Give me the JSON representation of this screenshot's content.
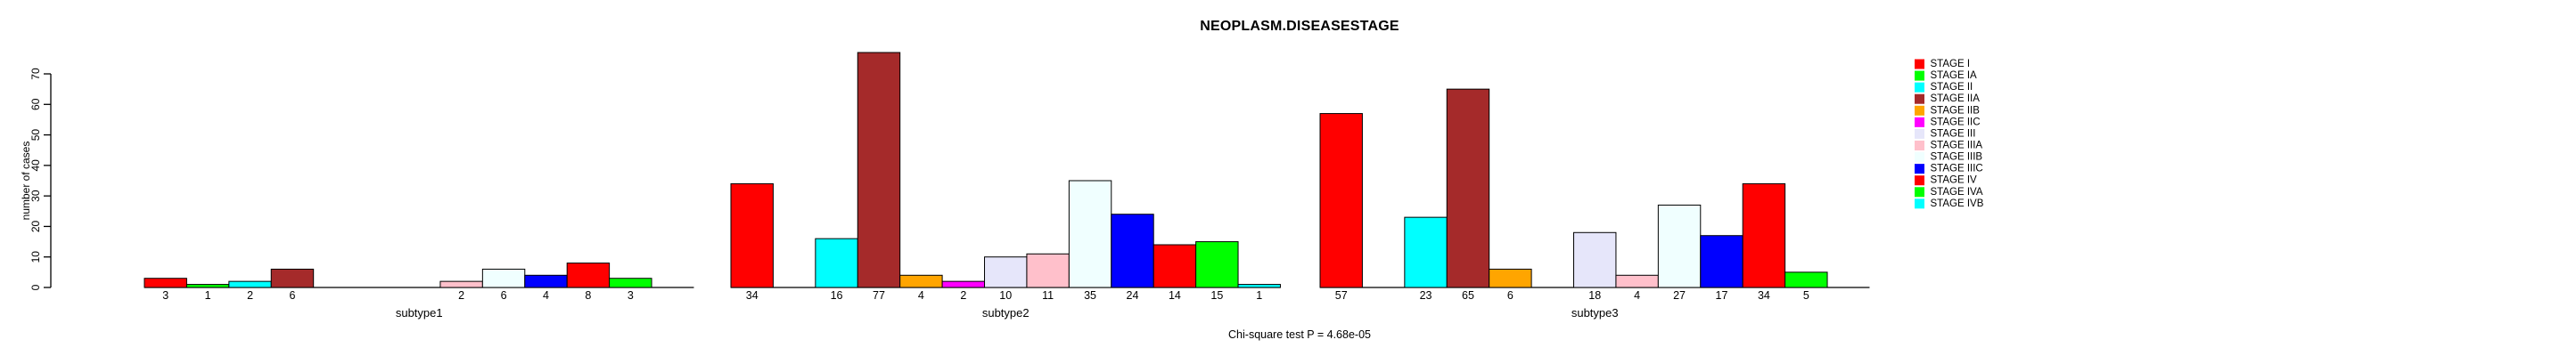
{
  "figure": {
    "background": "#ffffff",
    "text_color": "#000000",
    "axis_color": "#000000",
    "bar_border_color": "#000000"
  },
  "chart_data": {
    "type": "bar",
    "title": "NEOPLASM.DISEASESTAGE",
    "xlabel": "",
    "ylabel": "number of cases",
    "ylim": [
      0,
      70
    ],
    "yticks": [
      0,
      10,
      20,
      30,
      40,
      50,
      60,
      70
    ],
    "grid": false,
    "legend_position": "right-outside",
    "bar_value_labels_visible": true,
    "categories": [
      "STAGE I",
      "STAGE IA",
      "STAGE II",
      "STAGE IIA",
      "STAGE IIB",
      "STAGE IIC",
      "STAGE III",
      "STAGE IIIA",
      "STAGE IIIB",
      "STAGE IIIC",
      "STAGE IV",
      "STAGE IVA",
      "STAGE IVB"
    ],
    "colors": [
      "#ff0000",
      "#00ff00",
      "#00ffff",
      "#a52a2a",
      "#ffa500",
      "#ff00ff",
      "#e6e6fa",
      "#ffc0cb",
      "#f0ffff",
      "#0000ff",
      "#ff0000",
      "#00ff00",
      "#00ffff"
    ],
    "series": [
      {
        "name": "subtype1",
        "values": [
          3,
          1,
          2,
          6,
          0,
          0,
          0,
          2,
          6,
          4,
          8,
          3,
          0
        ]
      },
      {
        "name": "subtype2",
        "values": [
          34,
          0,
          16,
          77,
          4,
          2,
          10,
          11,
          35,
          24,
          14,
          15,
          1
        ]
      },
      {
        "name": "subtype3",
        "values": [
          57,
          0,
          23,
          65,
          6,
          0,
          18,
          4,
          27,
          17,
          34,
          5,
          0
        ]
      }
    ],
    "annotation": "Chi-square test P = 4.68e-05"
  }
}
